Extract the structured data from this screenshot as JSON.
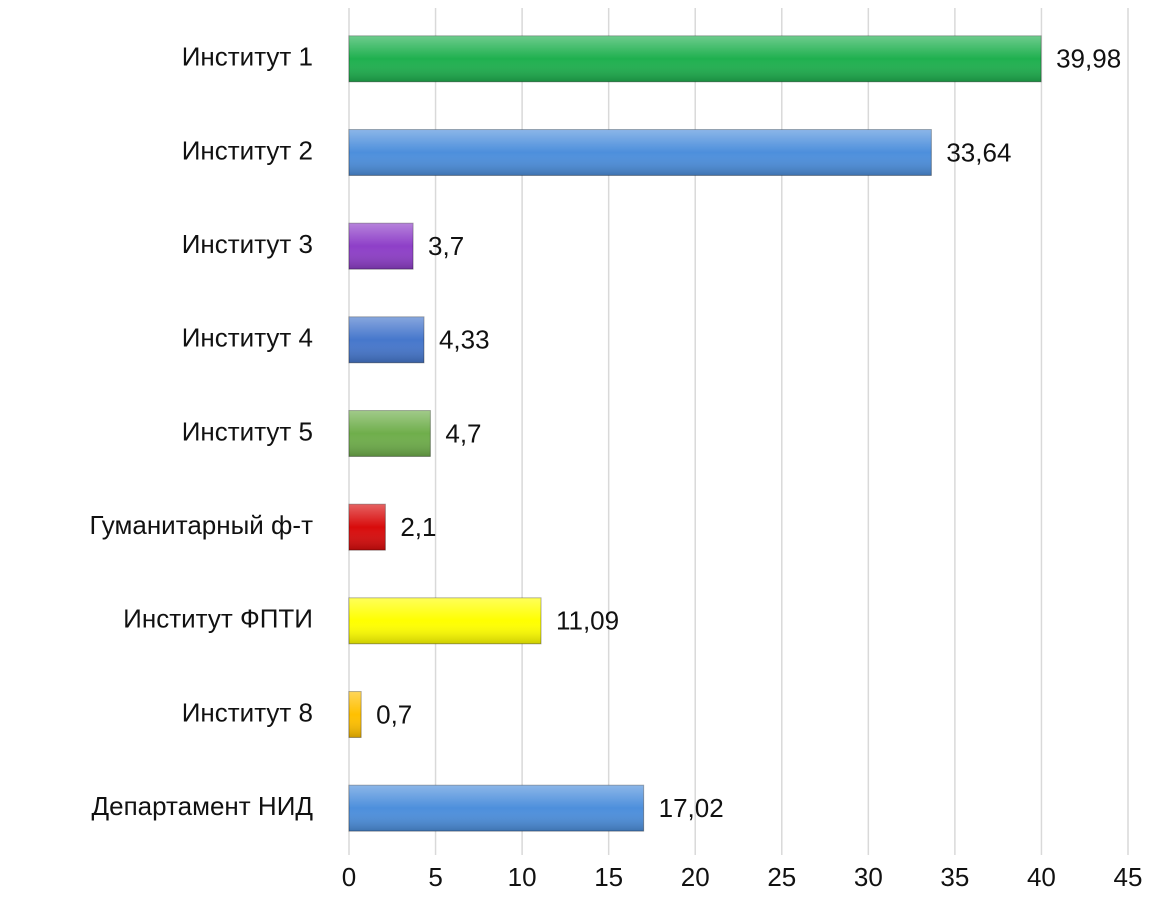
{
  "chart_data": {
    "type": "bar",
    "orientation": "horizontal",
    "categories": [
      "Институт 1",
      "Институт 2",
      "Институт 3",
      "Институт 4",
      "Институт 5",
      "Гуманитарный ф-т",
      "Институт ФПТИ",
      "Институт 8",
      "Департамент НИД"
    ],
    "values": [
      39.98,
      33.64,
      3.7,
      4.33,
      4.7,
      2.1,
      11.09,
      0.7,
      17.02
    ],
    "value_labels": [
      "39,98",
      "33,64",
      "3,7",
      "4,33",
      "4,7",
      "2,1",
      "11,09",
      "0,7",
      "17,02"
    ],
    "colors": [
      "#1fb04f",
      "#4d8fdc",
      "#8e3fc8",
      "#4677cc",
      "#6fae4b",
      "#d80c0c",
      "#ffff00",
      "#ffc000",
      "#4d8fdc"
    ],
    "xlim": [
      0,
      45
    ],
    "xticks": [
      0,
      5,
      10,
      15,
      20,
      25,
      30,
      35,
      40,
      45
    ],
    "grid": true
  }
}
